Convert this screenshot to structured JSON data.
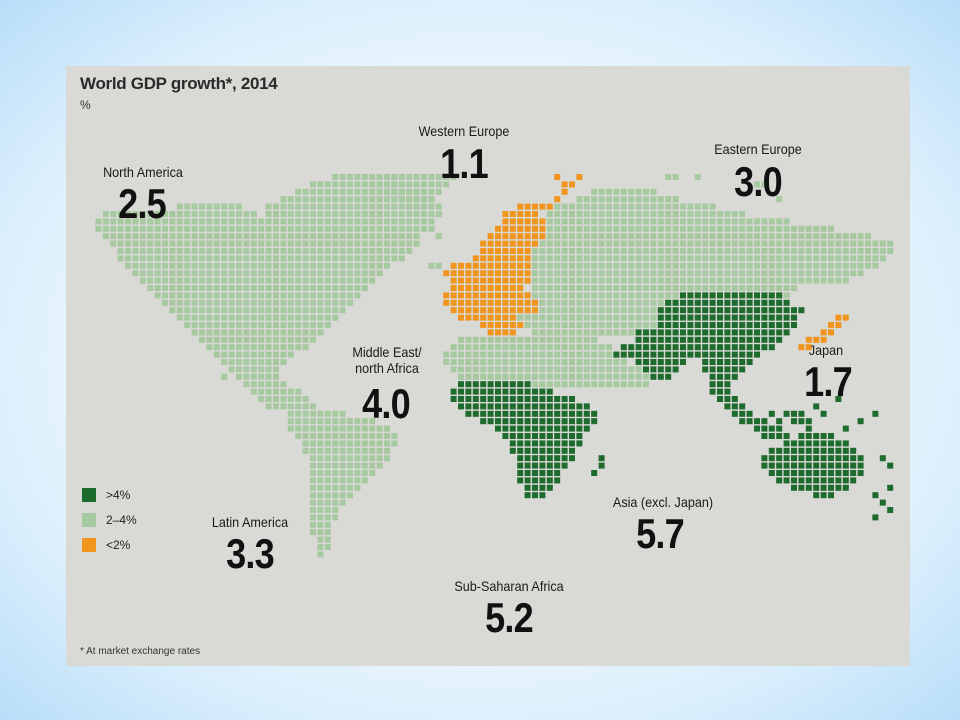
{
  "title": "World GDP growth*, 2014",
  "unit": "%",
  "colors": {
    "high": "#1e6b2e",
    "mid": "#a7c9a0",
    "low": "#f0961e",
    "card": "#d9d9d5"
  },
  "legend": [
    {
      "label": ">4%",
      "category": "high"
    },
    {
      "label": "2–4%",
      "category": "mid"
    },
    {
      "label": "<2%",
      "category": "low"
    }
  ],
  "regions": [
    {
      "name": "North America",
      "value": "2.5",
      "category": "mid"
    },
    {
      "name": "Western Europe",
      "value": "1.1",
      "category": "low"
    },
    {
      "name": "Eastern Europe",
      "value": "3.0",
      "category": "mid"
    },
    {
      "name": "Middle East/ north Africa",
      "value": "4.0",
      "category": "mid"
    },
    {
      "name": "Japan",
      "value": "1.7",
      "category": "low"
    },
    {
      "name": "Latin America",
      "value": "3.3",
      "category": "mid"
    },
    {
      "name": "Sub-Saharan Africa",
      "value": "5.2",
      "category": "high"
    },
    {
      "name": "Asia (excl. Japan)",
      "value": "5.7",
      "category": "high"
    }
  ],
  "footnote": "* At market exchange rates"
}
